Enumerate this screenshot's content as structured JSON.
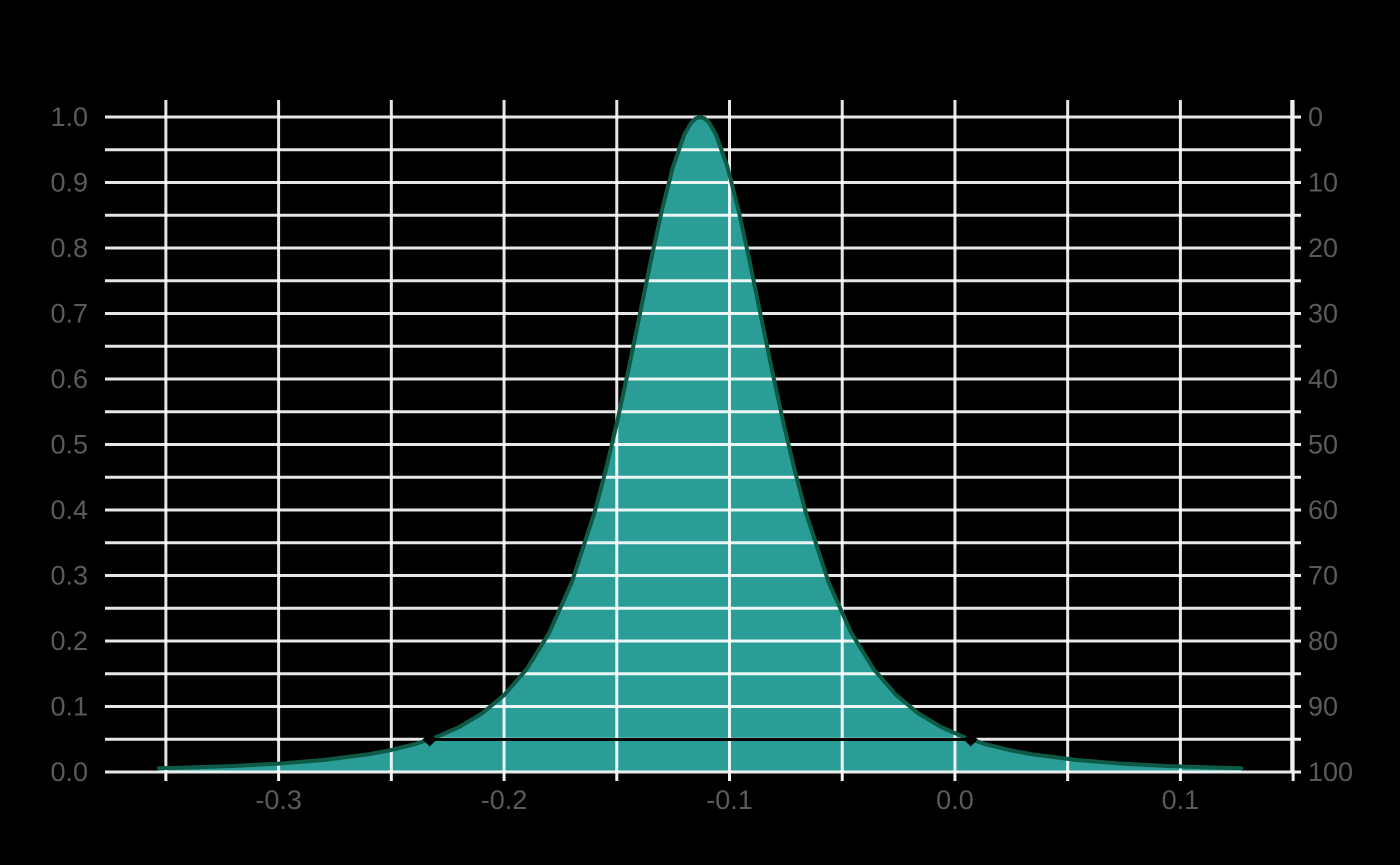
{
  "chart_data": {
    "type": "area",
    "title": "",
    "xlabel": "",
    "ylabel_left": "",
    "ylabel_right": "",
    "background": "#000000",
    "xlim": [
      -0.377,
      0.1495
    ],
    "ylim_left": [
      0.0,
      1.026
    ],
    "grid": {
      "x_step": 0.05,
      "y_step": 0.05,
      "color": "#ffffff",
      "opacity": 0.9,
      "width": 3
    },
    "axis": {
      "color": "#f0f0f0",
      "spine_width": 3.5,
      "tick_width": 3,
      "tick_length": 9
    },
    "tick_label_color": "#5a5a5a",
    "x_ticks": {
      "minor_positions": [
        -0.35,
        -0.3,
        -0.25,
        -0.2,
        -0.15,
        -0.1,
        -0.05,
        0.0,
        0.05,
        0.1,
        0.15
      ],
      "major": [
        {
          "value": -0.3,
          "label": "-0.3"
        },
        {
          "value": -0.2,
          "label": "-0.2"
        },
        {
          "value": -0.1,
          "label": "-0.1"
        },
        {
          "value": 0.0,
          "label": "0.0"
        },
        {
          "value": 0.1,
          "label": "0.1"
        }
      ]
    },
    "y_left_ticks": [
      {
        "value": 0.0,
        "label": "0.0"
      },
      {
        "value": 0.1,
        "label": "0.1"
      },
      {
        "value": 0.2,
        "label": "0.2"
      },
      {
        "value": 0.3,
        "label": "0.3"
      },
      {
        "value": 0.4,
        "label": "0.4"
      },
      {
        "value": 0.5,
        "label": "0.5"
      },
      {
        "value": 0.6,
        "label": "0.6"
      },
      {
        "value": 0.7,
        "label": "0.7"
      },
      {
        "value": 0.8,
        "label": "0.8"
      },
      {
        "value": 0.9,
        "label": "0.9"
      },
      {
        "value": 1.0,
        "label": "1.0"
      }
    ],
    "y_right_ticks": [
      {
        "value": 0,
        "label": "0"
      },
      {
        "value": 10,
        "label": "10"
      },
      {
        "value": 20,
        "label": "20"
      },
      {
        "value": 30,
        "label": "30"
      },
      {
        "value": 40,
        "label": "40"
      },
      {
        "value": 50,
        "label": "50"
      },
      {
        "value": 60,
        "label": "60"
      },
      {
        "value": 70,
        "label": "70"
      },
      {
        "value": 80,
        "label": "80"
      },
      {
        "value": 90,
        "label": "90"
      },
      {
        "value": 100,
        "label": "100"
      }
    ],
    "y_right_orientation": "inverted-percent",
    "curve": {
      "fill_color": "#2a9d96",
      "line_color": "#0f5a46",
      "line_width": 4,
      "peak": {
        "x": -0.113,
        "y": 1.0
      },
      "points": [
        [
          -0.353,
          0.0057
        ],
        [
          -0.34,
          0.0068
        ],
        [
          -0.32,
          0.0092
        ],
        [
          -0.3,
          0.0127
        ],
        [
          -0.28,
          0.0183
        ],
        [
          -0.26,
          0.0271
        ],
        [
          -0.25,
          0.0336
        ],
        [
          -0.24,
          0.042
        ],
        [
          -0.23,
          0.0533
        ],
        [
          -0.22,
          0.0684
        ],
        [
          -0.21,
          0.0889
        ],
        [
          -0.2,
          0.1173
        ],
        [
          -0.19,
          0.1568
        ],
        [
          -0.18,
          0.2123
        ],
        [
          -0.17,
          0.2893
        ],
        [
          -0.16,
          0.3946
        ],
        [
          -0.155,
          0.4593
        ],
        [
          -0.15,
          0.5319
        ],
        [
          -0.145,
          0.6112
        ],
        [
          -0.14,
          0.6947
        ],
        [
          -0.135,
          0.7788
        ],
        [
          -0.13,
          0.8576
        ],
        [
          -0.125,
          0.9248
        ],
        [
          -0.12,
          0.9734
        ],
        [
          -0.117,
          0.9912
        ],
        [
          -0.115,
          0.9978
        ],
        [
          -0.113,
          1.0
        ],
        [
          -0.111,
          0.9978
        ],
        [
          -0.109,
          0.9912
        ],
        [
          -0.106,
          0.9734
        ],
        [
          -0.101,
          0.9248
        ],
        [
          -0.096,
          0.8576
        ],
        [
          -0.091,
          0.7788
        ],
        [
          -0.086,
          0.6947
        ],
        [
          -0.081,
          0.6112
        ],
        [
          -0.076,
          0.5319
        ],
        [
          -0.071,
          0.4593
        ],
        [
          -0.066,
          0.3946
        ],
        [
          -0.056,
          0.2893
        ],
        [
          -0.046,
          0.2123
        ],
        [
          -0.036,
          0.1568
        ],
        [
          -0.026,
          0.1173
        ],
        [
          -0.016,
          0.0889
        ],
        [
          -0.006,
          0.0684
        ],
        [
          0.004,
          0.0533
        ],
        [
          0.014,
          0.042
        ],
        [
          0.024,
          0.0336
        ],
        [
          0.034,
          0.0271
        ],
        [
          0.054,
          0.0183
        ],
        [
          0.074,
          0.0127
        ],
        [
          0.094,
          0.0092
        ],
        [
          0.114,
          0.0068
        ],
        [
          0.127,
          0.0057
        ]
      ]
    },
    "interval": {
      "level": 0.0496,
      "x_start": -0.233,
      "x_end": 0.007,
      "color": "#000000",
      "line_width": 3,
      "marker": "diamond",
      "marker_half_size": 7
    }
  }
}
